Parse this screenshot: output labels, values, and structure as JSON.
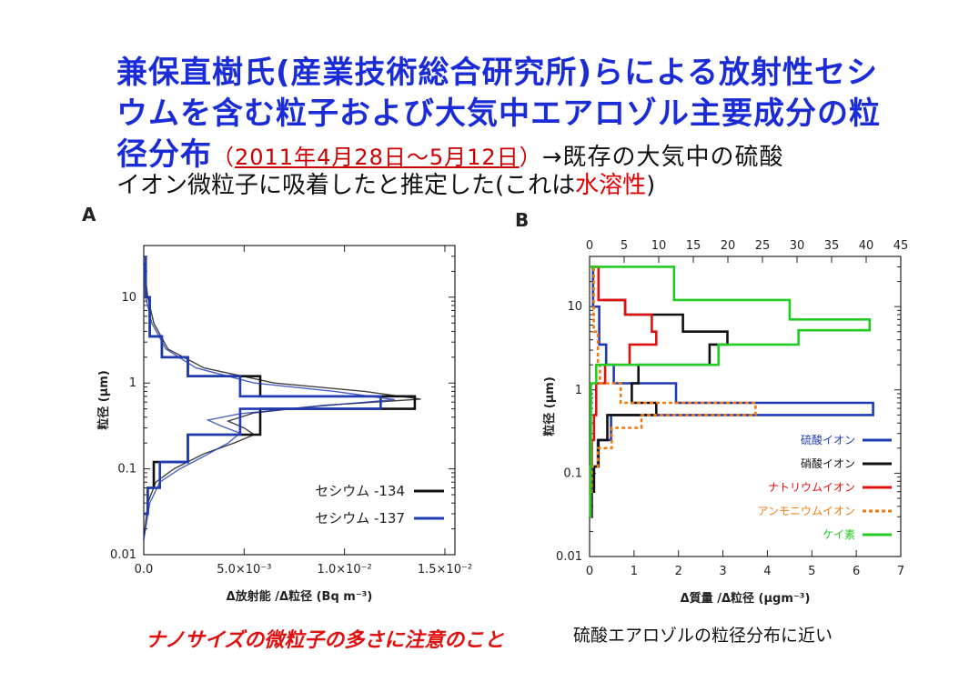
{
  "slide": {
    "title_line1": "兼保直樹氏(産業技術総合研究所)らによる放射性セシ",
    "title_line2": "ウムを含む粒子および大気中エアロゾル主要成分の粒",
    "title_line3_main": "径分布",
    "title_line3_paren_open": "（",
    "title_line3_dates": "2011年4月28日～5月12日",
    "title_line3_paren_close": "）",
    "title_line3_rest": "→既存の大気中の硫酸",
    "subtitle_main": "イオン微粒子に吸着したと推定した(これは",
    "subtitle_red": "水溶性",
    "subtitle_end": ")",
    "panel_a_label": "A",
    "panel_b_label": "B",
    "note_left": "ナノサイズの微粒子の多さに注意のこと",
    "note_right": "硫酸エアロゾルの粒径分布に近い"
  },
  "chart_data": [
    {
      "type": "line",
      "panel": "A",
      "xlabel": "Δ放射能 /Δ粒径 (Bq m⁻³)",
      "ylabel": "粒径 (μm)",
      "x_tick_labels": [
        "0.0",
        "5.0×10⁻³",
        "1.0×10⁻²",
        "1.5×10⁻²"
      ],
      "x_ticks": [
        0,
        0.005,
        0.01,
        0.015
      ],
      "xlim": [
        0,
        0.0155
      ],
      "y_scale": "log",
      "y_tick_labels": [
        "0.01",
        "0.1",
        "1",
        "10"
      ],
      "y_ticks": [
        0.01,
        0.1,
        1,
        10
      ],
      "ylim": [
        0.01,
        40
      ],
      "legend_position": "bottom-right",
      "series": [
        {
          "name": "セシウム -134",
          "color": "#111111",
          "step": [
            [
              0,
              0.03
            ],
            [
              0.0002,
              0.03
            ],
            [
              0.0002,
              0.06
            ],
            [
              0.0005,
              0.06
            ],
            [
              0.0005,
              0.12
            ],
            [
              0.0022,
              0.12
            ],
            [
              0.0022,
              0.25
            ],
            [
              0.0058,
              0.25
            ],
            [
              0.0058,
              0.5
            ],
            [
              0.0135,
              0.5
            ],
            [
              0.0135,
              0.7
            ],
            [
              0.0058,
              0.7
            ],
            [
              0.0058,
              1.2
            ],
            [
              0.0022,
              1.2
            ],
            [
              0.0022,
              2
            ],
            [
              0.0009,
              2
            ],
            [
              0.0009,
              3.5
            ],
            [
              0.0003,
              3.5
            ],
            [
              0.0003,
              10
            ],
            [
              0.0001,
              10
            ],
            [
              0.0001,
              30
            ]
          ],
          "fit": [
            [
              0,
              0.015
            ],
            [
              0.0002,
              0.04
            ],
            [
              0.0006,
              0.07
            ],
            [
              0.0015,
              0.1
            ],
            [
              0.003,
              0.15
            ],
            [
              0.0045,
              0.2
            ],
            [
              0.0055,
              0.25
            ],
            [
              0.005,
              0.3
            ],
            [
              0.0042,
              0.36
            ],
            [
              0.0055,
              0.45
            ],
            [
              0.009,
              0.55
            ],
            [
              0.0138,
              0.65
            ],
            [
              0.011,
              0.8
            ],
            [
              0.0065,
              1
            ],
            [
              0.003,
              1.5
            ],
            [
              0.0012,
              2.5
            ],
            [
              0.0005,
              5
            ],
            [
              0.0002,
              10
            ],
            [
              0,
              25
            ]
          ]
        },
        {
          "name": "セシウム -137",
          "color": "#1f3ab5",
          "step": [
            [
              0,
              0.03
            ],
            [
              0.0002,
              0.03
            ],
            [
              0.0002,
              0.06
            ],
            [
              0.0008,
              0.06
            ],
            [
              0.0008,
              0.12
            ],
            [
              0.0022,
              0.12
            ],
            [
              0.0022,
              0.25
            ],
            [
              0.0048,
              0.25
            ],
            [
              0.0048,
              0.5
            ],
            [
              0.0118,
              0.5
            ],
            [
              0.0118,
              0.7
            ],
            [
              0.0048,
              0.7
            ],
            [
              0.0048,
              1.2
            ],
            [
              0.0022,
              1.2
            ],
            [
              0.0022,
              2
            ],
            [
              0.0009,
              2
            ],
            [
              0.0009,
              3.5
            ],
            [
              0.0003,
              3.5
            ],
            [
              0.0003,
              10
            ],
            [
              0.0001,
              10
            ],
            [
              0.0001,
              30
            ]
          ],
          "fit": [
            [
              0,
              0.015
            ],
            [
              0.0003,
              0.04
            ],
            [
              0.0008,
              0.07
            ],
            [
              0.0018,
              0.1
            ],
            [
              0.003,
              0.14
            ],
            [
              0.0042,
              0.2
            ],
            [
              0.0048,
              0.26
            ],
            [
              0.0038,
              0.32
            ],
            [
              0.0032,
              0.37
            ],
            [
              0.0048,
              0.44
            ],
            [
              0.008,
              0.52
            ],
            [
              0.0125,
              0.64
            ],
            [
              0.0095,
              0.8
            ],
            [
              0.0055,
              1
            ],
            [
              0.0026,
              1.5
            ],
            [
              0.0011,
              2.5
            ],
            [
              0.0004,
              5
            ],
            [
              0.0001,
              10
            ],
            [
              0,
              25
            ]
          ]
        }
      ]
    },
    {
      "type": "line",
      "panel": "B",
      "xlabel": "Δ質量 /Δ粒径 (μgm⁻³)",
      "ylabel": "粒径 (μm)",
      "x_ticks": [
        0,
        1,
        2,
        3,
        4,
        5,
        6,
        7
      ],
      "xlim": [
        0,
        7
      ],
      "x2_ticks": [
        0,
        5,
        10,
        15,
        20,
        25,
        30,
        35,
        40,
        45
      ],
      "x2lim": [
        0,
        45
      ],
      "y_scale": "log",
      "y_tick_labels": [
        "0.01",
        "0.1",
        "1",
        "10"
      ],
      "y_ticks": [
        0.01,
        0.1,
        1,
        10
      ],
      "ylim": [
        0.01,
        40
      ],
      "legend_position": "bottom-right",
      "series": [
        {
          "name": "硫酸イオン",
          "color": "#1f3ab5",
          "line": "solid",
          "axis": "top",
          "step": [
            [
              0,
              0.03
            ],
            [
              0.15,
              0.03
            ],
            [
              0.15,
              0.06
            ],
            [
              0.3,
              0.06
            ],
            [
              0.3,
              0.12
            ],
            [
              1.2,
              0.12
            ],
            [
              1.2,
              0.25
            ],
            [
              3.1,
              0.25
            ],
            [
              3.1,
              0.5
            ],
            [
              41,
              0.5
            ],
            [
              41,
              0.7
            ],
            [
              12.5,
              0.7
            ],
            [
              12.5,
              1.2
            ],
            [
              3.5,
              1.2
            ],
            [
              3.5,
              2
            ],
            [
              2.4,
              2
            ],
            [
              2.4,
              3.5
            ],
            [
              1.4,
              3.5
            ],
            [
              1.4,
              10
            ],
            [
              0.5,
              10
            ],
            [
              0.5,
              30
            ]
          ]
        },
        {
          "name": "硝酸イオン",
          "color": "#111111",
          "line": "solid",
          "axis": "bottom",
          "step": [
            [
              0,
              0.03
            ],
            [
              0.05,
              0.03
            ],
            [
              0.05,
              0.06
            ],
            [
              0.1,
              0.06
            ],
            [
              0.1,
              0.12
            ],
            [
              0.2,
              0.12
            ],
            [
              0.2,
              0.25
            ],
            [
              0.4,
              0.25
            ],
            [
              0.4,
              0.5
            ],
            [
              1.5,
              0.5
            ],
            [
              1.5,
              0.7
            ],
            [
              0.95,
              0.7
            ],
            [
              0.95,
              1.2
            ],
            [
              1.1,
              1.2
            ],
            [
              1.1,
              2
            ],
            [
              2.7,
              2
            ],
            [
              2.7,
              3.5
            ],
            [
              3.1,
              3.5
            ],
            [
              3.1,
              5
            ],
            [
              2.1,
              5
            ],
            [
              2.1,
              8
            ],
            [
              0.8,
              8
            ],
            [
              0.8,
              12
            ],
            [
              0.3,
              12
            ]
          ]
        },
        {
          "name": "ナトリウムイオン",
          "color": "#e01010",
          "line": "solid",
          "axis": "bottom",
          "step": [
            [
              0,
              0.03
            ],
            [
              0.02,
              0.03
            ],
            [
              0.02,
              0.12
            ],
            [
              0.05,
              0.12
            ],
            [
              0.05,
              0.25
            ],
            [
              0.1,
              0.25
            ],
            [
              0.1,
              0.5
            ],
            [
              0.15,
              0.5
            ],
            [
              0.15,
              1.2
            ],
            [
              0.35,
              1.2
            ],
            [
              0.35,
              2
            ],
            [
              0.9,
              2
            ],
            [
              0.9,
              3.5
            ],
            [
              1.5,
              3.5
            ],
            [
              1.5,
              5
            ],
            [
              1.4,
              5
            ],
            [
              1.4,
              8
            ],
            [
              0.8,
              8
            ],
            [
              0.8,
              12
            ],
            [
              0.2,
              12
            ],
            [
              0.2,
              30
            ],
            [
              0,
              30
            ]
          ]
        },
        {
          "name": "アンモニウムイオン",
          "color": "#f07a10",
          "line": "dashed",
          "axis": "top",
          "step": [
            [
              0,
              0.03
            ],
            [
              0.15,
              0.03
            ],
            [
              0.15,
              0.06
            ],
            [
              0.3,
              0.06
            ],
            [
              0.3,
              0.12
            ],
            [
              1.2,
              0.12
            ],
            [
              1.2,
              0.2
            ],
            [
              3.2,
              0.2
            ],
            [
              3.2,
              0.35
            ],
            [
              7.5,
              0.35
            ],
            [
              7.5,
              0.5
            ],
            [
              24,
              0.5
            ],
            [
              24,
              0.7
            ],
            [
              4.5,
              0.7
            ],
            [
              4.5,
              1.2
            ],
            [
              1.5,
              1.2
            ],
            [
              1.5,
              2
            ],
            [
              1.2,
              2
            ],
            [
              1.2,
              5
            ],
            [
              0.6,
              5
            ],
            [
              0.6,
              30
            ]
          ]
        },
        {
          "name": "ケイ素",
          "color": "#22cc22",
          "line": "solid",
          "axis": "bottom",
          "step": [
            [
              0,
              0.03
            ],
            [
              0.02,
              0.03
            ],
            [
              0.02,
              0.12
            ],
            [
              0.03,
              0.12
            ],
            [
              0.03,
              1.2
            ],
            [
              0.15,
              1.2
            ],
            [
              0.15,
              2
            ],
            [
              2.9,
              2
            ],
            [
              2.9,
              3.5
            ],
            [
              4.7,
              3.5
            ],
            [
              4.7,
              5.2
            ],
            [
              6.3,
              5.2
            ],
            [
              6.3,
              7
            ],
            [
              4.5,
              7
            ],
            [
              4.5,
              12
            ],
            [
              1.9,
              12
            ],
            [
              1.9,
              30
            ],
            [
              0,
              30
            ]
          ]
        }
      ]
    }
  ]
}
